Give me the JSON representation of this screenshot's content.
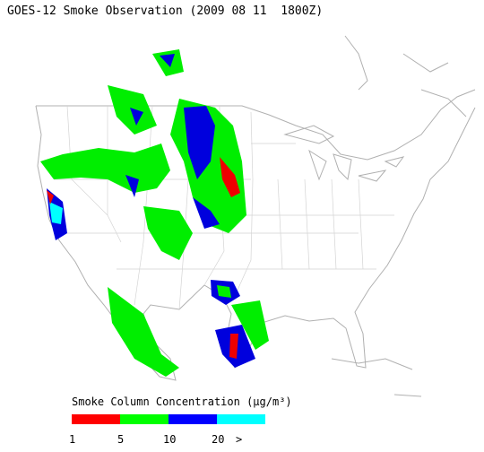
{
  "title": "GOES-12 Smoke Observation (2009 08 11  1800Z)",
  "legend": {
    "title": "Smoke Column Concentration (μg/m³)",
    "colors": [
      "#ff0000",
      "#00ff00",
      "#0000ff",
      "#00ffff"
    ],
    "labels": [
      "1",
      "5",
      "10",
      "20",
      ">"
    ]
  }
}
